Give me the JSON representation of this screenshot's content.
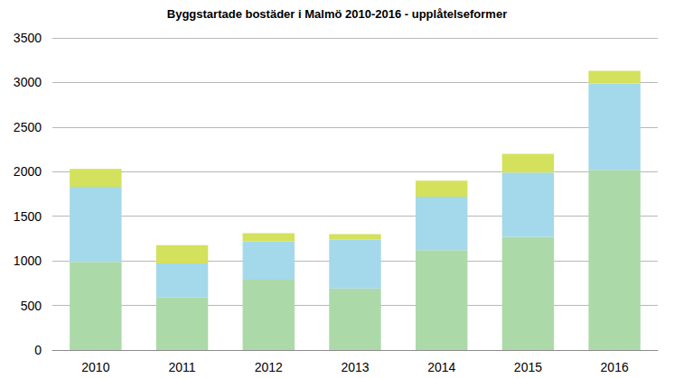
{
  "chart_data": {
    "type": "bar",
    "title": "Byggstartade bostäder i Malmö 2010-2016 - upplåtelseformer",
    "categories": [
      "2010",
      "2011",
      "2012",
      "2013",
      "2014",
      "2015",
      "2016"
    ],
    "series": [
      {
        "color": "#acd9a8",
        "values": [
          990,
          590,
          790,
          690,
          1120,
          1270,
          2020
        ]
      },
      {
        "color": "#a3d9ea",
        "values": [
          840,
          380,
          430,
          550,
          600,
          720,
          970
        ]
      },
      {
        "color": "#d4e15c",
        "values": [
          200,
          205,
          90,
          60,
          180,
          210,
          140
        ]
      }
    ],
    "stacked": true,
    "ylim": [
      0,
      3500
    ],
    "yticks": [
      0,
      500,
      1000,
      1500,
      2000,
      2500,
      3000,
      3500
    ],
    "grid": true
  }
}
